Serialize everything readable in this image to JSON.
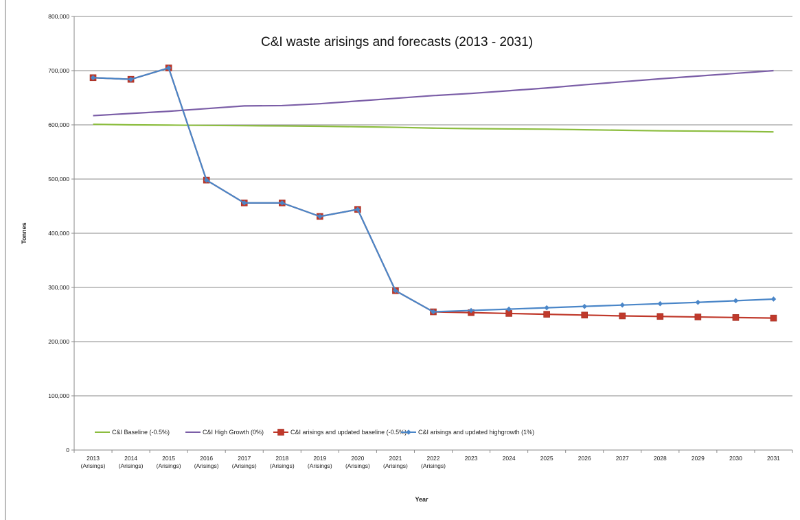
{
  "chart_data": {
    "type": "line",
    "title": "C&I waste arisings and forecasts (2013 - 2031)",
    "xlabel": "Year",
    "ylabel": "Tonnes",
    "ylim": [
      0,
      800000
    ],
    "yticks": [
      0,
      100000,
      200000,
      300000,
      400000,
      500000,
      600000,
      700000,
      800000
    ],
    "ytick_labels": [
      "0",
      "100,000",
      "200,000",
      "300,000",
      "400,000",
      "500,000",
      "600,000",
      "700,000",
      "800,000"
    ],
    "grid": "horizontal",
    "legend_position": "bottom-left",
    "categories": [
      [
        "2013",
        "(Arisings)"
      ],
      [
        "2014",
        "(Arisings)"
      ],
      [
        "2015",
        "(Arisings)"
      ],
      [
        "2016",
        "(Arisings)"
      ],
      [
        "2017",
        "(Arisings)"
      ],
      [
        "2018",
        "(Arisings)"
      ],
      [
        "2019",
        "(Arisings)"
      ],
      [
        "2020",
        "(Arisings)"
      ],
      [
        "2021",
        "(Arisings)"
      ],
      [
        "2022",
        "(Arisings)"
      ],
      [
        "2023"
      ],
      [
        "2024"
      ],
      [
        "2025"
      ],
      [
        "2026"
      ],
      [
        "2027"
      ],
      [
        "2028"
      ],
      [
        "2029"
      ],
      [
        "2030"
      ],
      [
        "2031"
      ]
    ],
    "series": [
      {
        "name": "C&I Baseline (-0.5%)",
        "color": "#8cbd3f",
        "marker": "none",
        "values": [
          601000,
          600000,
          599500,
          599000,
          598500,
          598000,
          597500,
          596500,
          595500,
          594000,
          593000,
          592500,
          592000,
          591000,
          590000,
          589000,
          588500,
          588000,
          587000
        ]
      },
      {
        "name": "C&I High Growth (0%)",
        "color": "#7b5ea7",
        "marker": "none",
        "values": [
          617000,
          621000,
          625000,
          630000,
          635000,
          635500,
          639000,
          644000,
          649000,
          654000,
          658000,
          663000,
          668000,
          674000,
          679500,
          685000,
          690000,
          695000,
          700000
        ]
      },
      {
        "name": "C&I arisings and updated baseline (-0.5%)",
        "color": "#c0392b",
        "marker": "square",
        "values": [
          687000,
          684000,
          705000,
          498000,
          456000,
          456000,
          431000,
          444000,
          294000,
          255000,
          253500,
          252000,
          250500,
          249000,
          247500,
          246500,
          245500,
          244500,
          243500
        ]
      },
      {
        "name": "C&I arisings and updated highgrowth (1%)",
        "color": "#4a86c8",
        "marker": "diamond",
        "values": [
          687000,
          684000,
          705000,
          498000,
          456000,
          456000,
          431000,
          444000,
          294000,
          255000,
          257500,
          260000,
          262500,
          265000,
          267500,
          270000,
          272500,
          275500,
          278500
        ]
      }
    ]
  }
}
